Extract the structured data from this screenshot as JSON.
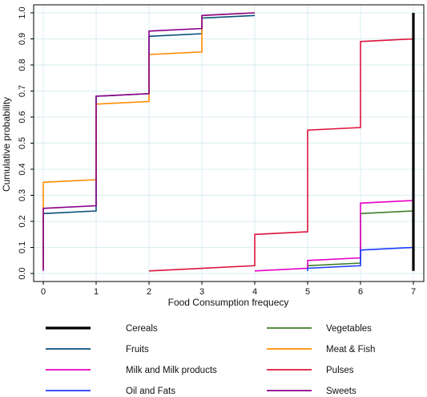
{
  "chart_data": {
    "type": "line",
    "title": "",
    "xlabel": "Food Consumption frequecy",
    "ylabel": "Cumulative probability",
    "xlim": [
      0,
      7
    ],
    "ylim": [
      0,
      1
    ],
    "x_ticks": [
      "0",
      "1",
      "2",
      "3",
      "4",
      "5",
      "6",
      "7"
    ],
    "y_ticks": [
      "0.0",
      "0.1",
      "0.2",
      "0.3",
      "0.4",
      "0.5",
      "0.6",
      "0.7",
      "0.8",
      "0.9",
      "1.0"
    ],
    "grid": true,
    "legend_position": "bottom",
    "step": true,
    "series": [
      {
        "name": "Cereals",
        "color": "#000000",
        "points": [
          [
            7,
            0.01
          ],
          [
            7,
            1.0
          ]
        ]
      },
      {
        "name": "Vegetables",
        "color": "#3f7f2a",
        "points": [
          [
            5,
            0.02
          ],
          [
            5,
            0.03
          ],
          [
            6,
            0.04
          ],
          [
            6,
            0.23
          ],
          [
            7,
            0.24
          ]
        ]
      },
      {
        "name": "Fruits",
        "color": "#0a4f7a",
        "points": [
          [
            0,
            0.02
          ],
          [
            0,
            0.23
          ],
          [
            1,
            0.24
          ],
          [
            1,
            0.68
          ],
          [
            2,
            0.69
          ],
          [
            2,
            0.91
          ],
          [
            3,
            0.92
          ],
          [
            3,
            0.98
          ],
          [
            4,
            0.99
          ]
        ]
      },
      {
        "name": "Meat & Fish",
        "color": "#ff8c00",
        "points": [
          [
            0,
            0.02
          ],
          [
            0,
            0.35
          ],
          [
            1,
            0.36
          ],
          [
            1,
            0.65
          ],
          [
            2,
            0.66
          ],
          [
            2,
            0.84
          ],
          [
            3,
            0.85
          ],
          [
            3,
            0.99
          ],
          [
            4,
            1.0
          ]
        ]
      },
      {
        "name": "Milk and Milk products",
        "color": "#e600c8",
        "points": [
          [
            4,
            0.01
          ],
          [
            5,
            0.02
          ],
          [
            5,
            0.05
          ],
          [
            6,
            0.06
          ],
          [
            6,
            0.27
          ],
          [
            7,
            0.28
          ]
        ]
      },
      {
        "name": "Pulses",
        "color": "#dc143c",
        "points": [
          [
            2,
            0.01
          ],
          [
            4,
            0.03
          ],
          [
            4,
            0.15
          ],
          [
            5,
            0.16
          ],
          [
            5,
            0.55
          ],
          [
            6,
            0.56
          ],
          [
            6,
            0.89
          ],
          [
            7,
            0.9
          ],
          [
            7,
            1.0
          ]
        ]
      },
      {
        "name": "Oil and Fats",
        "color": "#1e3cff",
        "points": [
          [
            5,
            0.01
          ],
          [
            5,
            0.02
          ],
          [
            6,
            0.03
          ],
          [
            6,
            0.09
          ],
          [
            7,
            0.1
          ],
          [
            7,
            1.0
          ]
        ]
      },
      {
        "name": "Sweets",
        "color": "#8b008b",
        "points": [
          [
            0,
            0.01
          ],
          [
            0,
            0.25
          ],
          [
            1,
            0.26
          ],
          [
            1,
            0.68
          ],
          [
            2,
            0.69
          ],
          [
            2,
            0.93
          ],
          [
            3,
            0.94
          ],
          [
            3,
            0.99
          ],
          [
            4,
            1.0
          ]
        ]
      }
    ],
    "legend_order": [
      "Cereals",
      "Vegetables",
      "Fruits",
      "Meat & Fish",
      "Milk and Milk products",
      "Pulses",
      "Oil and Fats",
      "Sweets"
    ]
  }
}
